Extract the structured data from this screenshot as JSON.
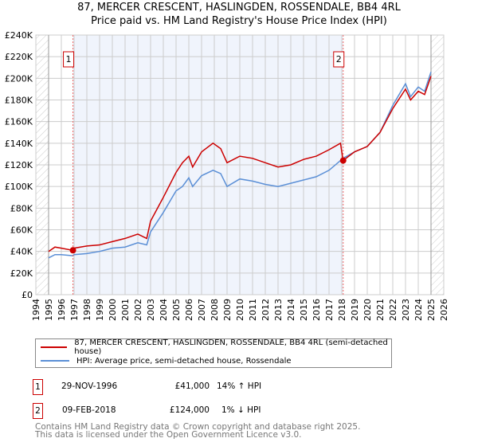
{
  "title_line1": "87, MERCER CRESCENT, HASLINGDEN, ROSSENDALE, BB4 4RL",
  "title_line2": "Price paid vs. HM Land Registry's House Price Index (HPI)",
  "chart_data": {
    "type": "line",
    "xlim": [
      1994,
      2026
    ],
    "ylim": [
      0,
      240000
    ],
    "x_ticks": [
      "1994",
      "1995",
      "1996",
      "1997",
      "1998",
      "1999",
      "2000",
      "2001",
      "2002",
      "2003",
      "2004",
      "2005",
      "2006",
      "2007",
      "2008",
      "2009",
      "2010",
      "2011",
      "2012",
      "2013",
      "2014",
      "2015",
      "2016",
      "2017",
      "2018",
      "2019",
      "2020",
      "2021",
      "2022",
      "2023",
      "2024",
      "2025",
      "2026"
    ],
    "y_ticks": [
      "£0",
      "£20K",
      "£40K",
      "£60K",
      "£80K",
      "£100K",
      "£120K",
      "£140K",
      "£160K",
      "£180K",
      "£200K",
      "£220K",
      "£240K"
    ],
    "series": [
      {
        "name": "87, MERCER CRESCENT, HASLINGDEN, ROSSENDALE, BB4 4RL (semi-detached house)",
        "color": "#cc0000",
        "x": [
          1995,
          1995.5,
          1996,
          1996.9,
          1997,
          1998,
          1999,
          2000,
          2001,
          2002,
          2002.7,
          2003,
          2004,
          2005,
          2005.5,
          2006,
          2006.3,
          2007,
          2007.9,
          2008.5,
          2009,
          2010,
          2011,
          2012,
          2013,
          2014,
          2015,
          2016,
          2017,
          2017.9,
          2018.1,
          2019,
          2020,
          2021,
          2022,
          2023,
          2023.4,
          2024,
          2024.5,
          2025
        ],
        "y": [
          40000,
          44000,
          43000,
          41000,
          43000,
          45000,
          46000,
          49000,
          52000,
          56000,
          52000,
          68000,
          90000,
          113000,
          122000,
          128000,
          118000,
          132000,
          140000,
          135000,
          122000,
          128000,
          126000,
          122000,
          118000,
          120000,
          125000,
          128000,
          134000,
          140000,
          124000,
          132000,
          137000,
          150000,
          172000,
          190000,
          180000,
          188000,
          185000,
          202000
        ]
      },
      {
        "name": "HPI: Average price, semi-detached house, Rossendale",
        "color": "#5b8fd6",
        "x": [
          1995,
          1995.5,
          1996,
          1996.9,
          1997,
          1998,
          1999,
          2000,
          2001,
          2002,
          2002.7,
          2003,
          2004,
          2005,
          2005.5,
          2006,
          2006.3,
          2007,
          2007.9,
          2008.5,
          2009,
          2010,
          2011,
          2012,
          2013,
          2014,
          2015,
          2016,
          2017,
          2017.9,
          2018.1,
          2019,
          2020,
          2021,
          2022,
          2023,
          2023.4,
          2024,
          2024.5,
          2025
        ],
        "y": [
          34000,
          37000,
          37000,
          36000,
          37000,
          38000,
          40000,
          43000,
          44000,
          48000,
          46000,
          58000,
          76000,
          96000,
          100000,
          108000,
          100000,
          110000,
          115000,
          112000,
          100000,
          107000,
          105000,
          102000,
          100000,
          103000,
          106000,
          109000,
          115000,
          124000,
          126000,
          132000,
          137000,
          150000,
          175000,
          195000,
          183000,
          192000,
          188000,
          206000
        ]
      }
    ],
    "sales": [
      {
        "label": "1",
        "x": 1996.91,
        "y": 41000
      },
      {
        "label": "2",
        "x": 2018.11,
        "y": 124000
      }
    ]
  },
  "legend": {
    "property": "87, MERCER CRESCENT, HASLINGDEN, ROSSENDALE, BB4 4RL (semi-detached house)",
    "hpi": "HPI: Average price, semi-detached house, Rossendale"
  },
  "transactions": [
    {
      "num": "1",
      "date": "29-NOV-1996",
      "price": "£41,000",
      "hpi": "14% ↑ HPI"
    },
    {
      "num": "2",
      "date": "09-FEB-2018",
      "price": "£124,000",
      "hpi": "1% ↓ HPI"
    }
  ],
  "footer_line1": "Contains HM Land Registry data © Crown copyright and database right 2025.",
  "footer_line2": "This data is licensed under the Open Government Licence v3.0."
}
